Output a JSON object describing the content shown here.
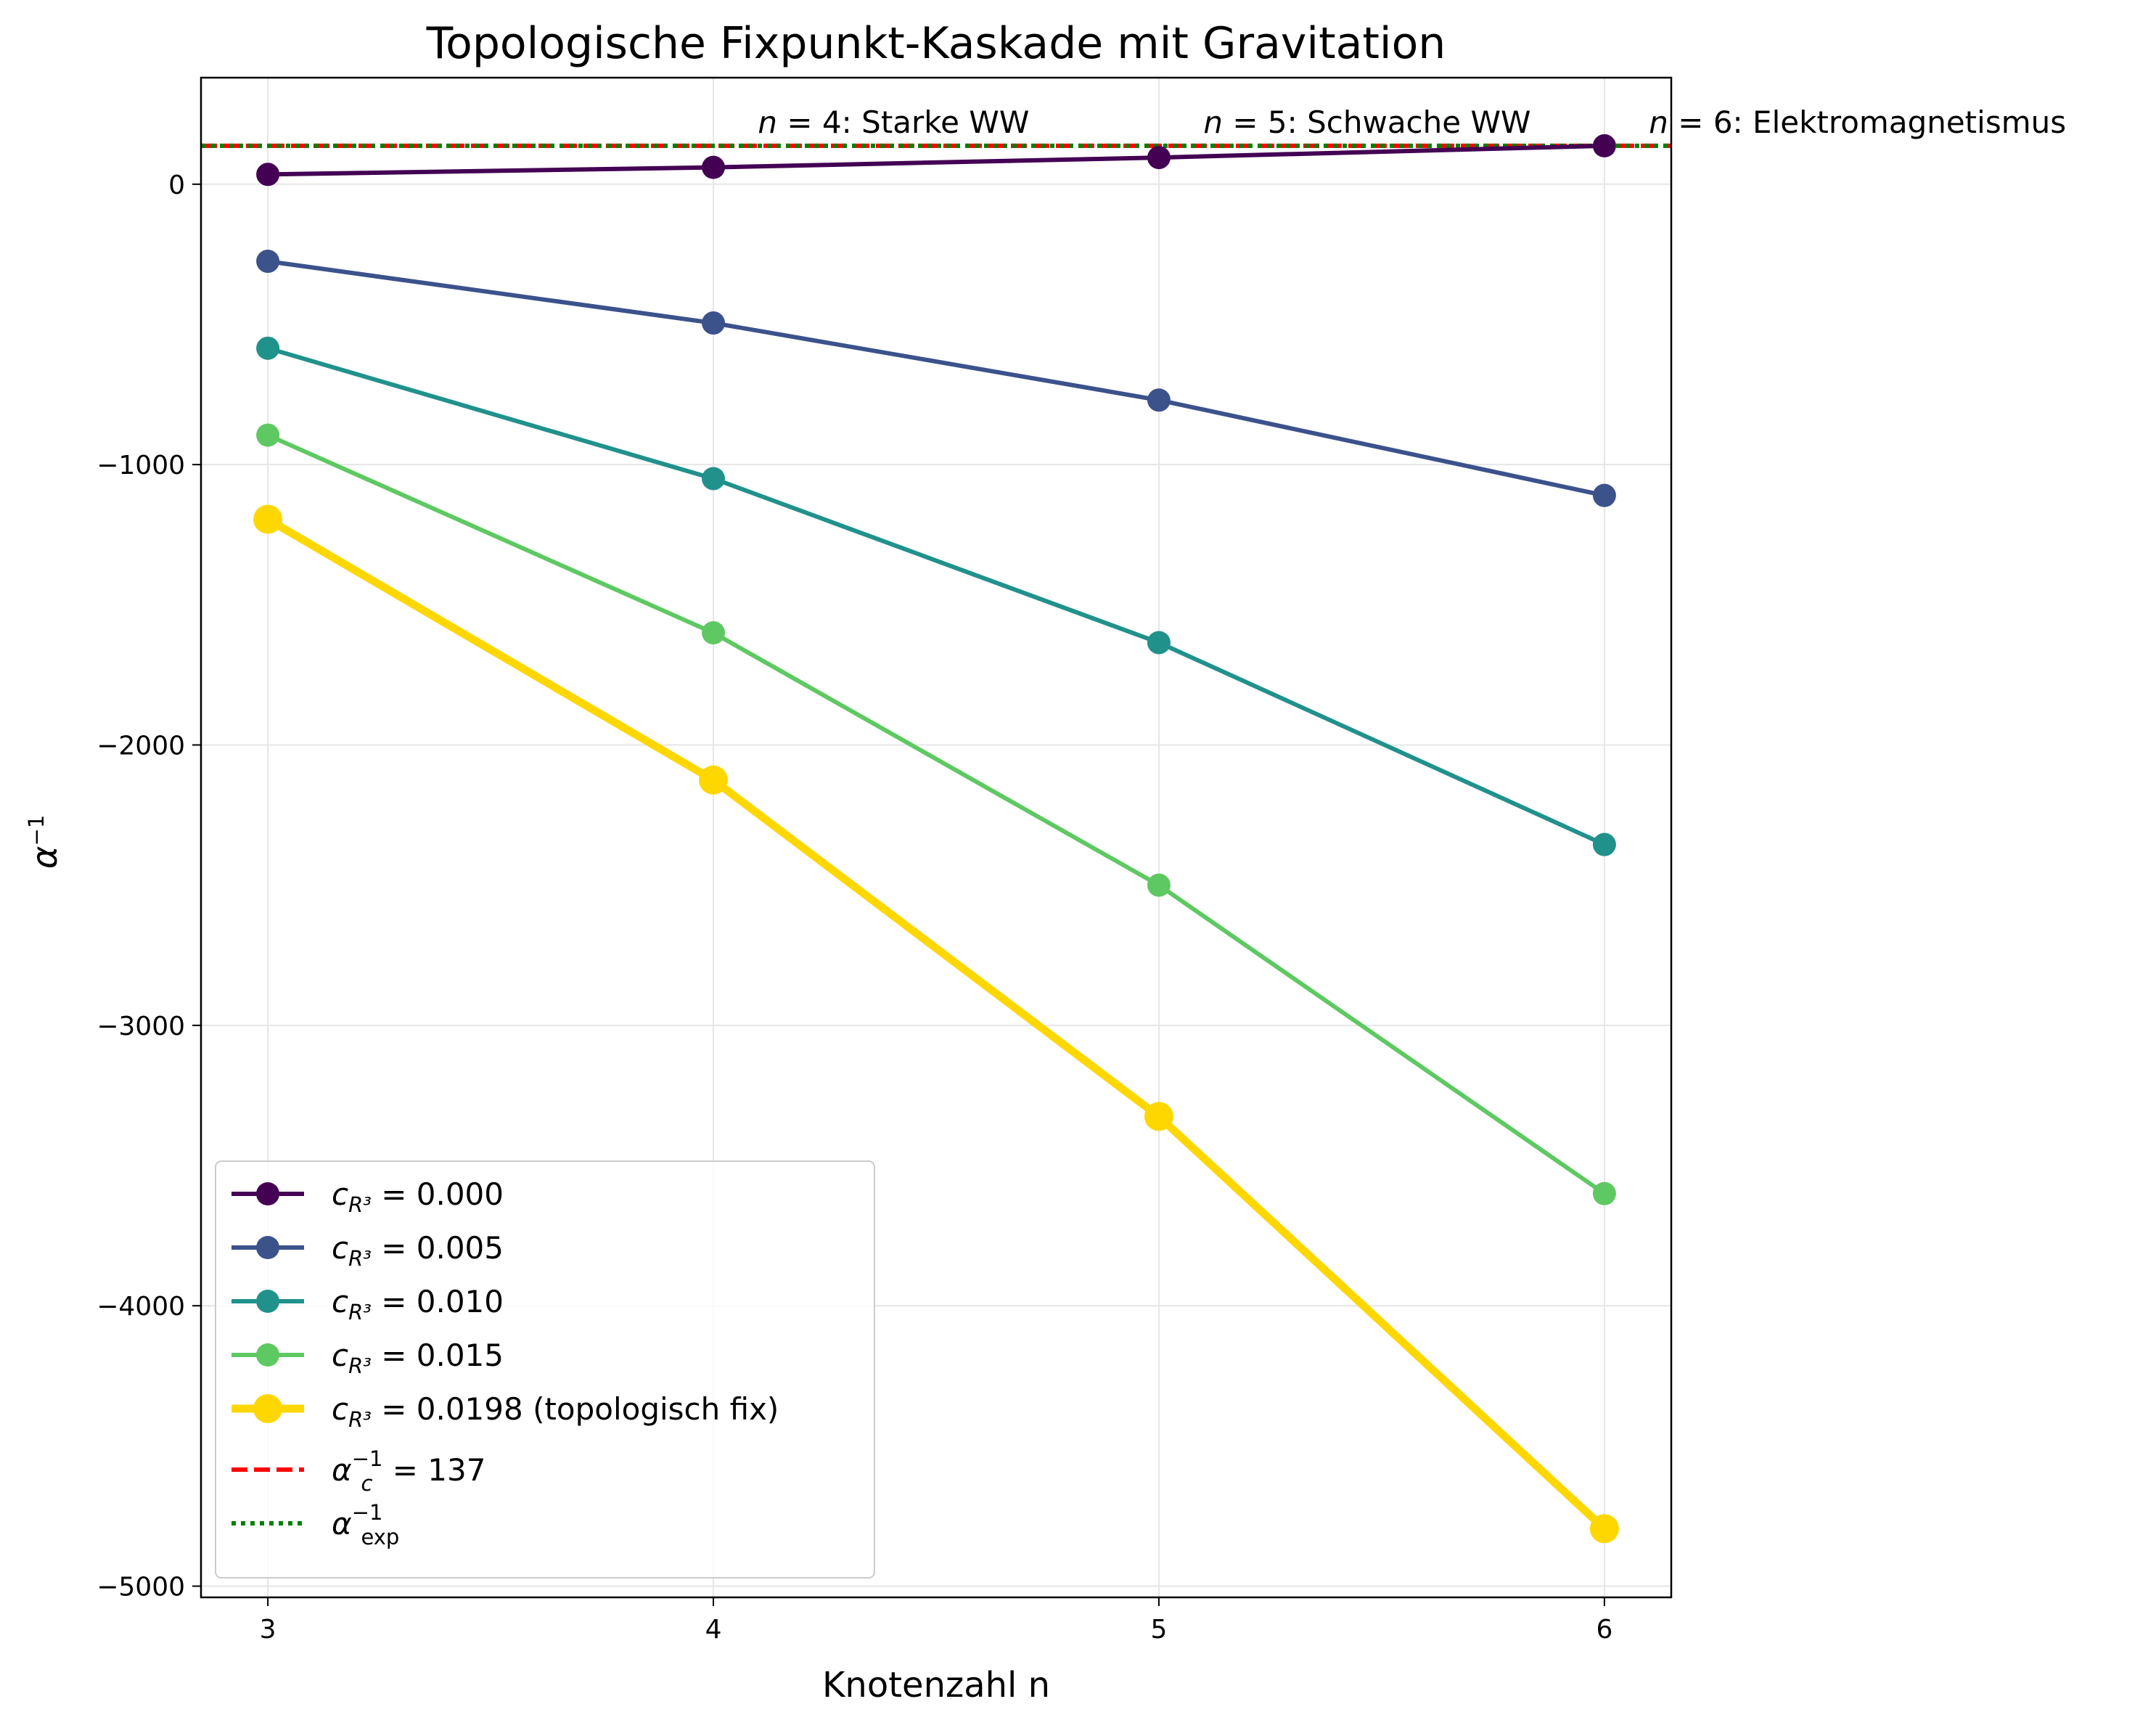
{
  "chart_data": {
    "type": "line",
    "title": "Topologische Fixpunkt-Kaskade mit Gravitation",
    "xlabel": "Knotenzahl n",
    "ylabel": "α⁻¹",
    "x": [
      3,
      4,
      5,
      6
    ],
    "xlim": [
      2.85,
      6.15
    ],
    "ylim": [
      -5040,
      380
    ],
    "xticks": [
      3,
      4,
      5,
      6
    ],
    "yticks": [
      0,
      -1000,
      -2000,
      -3000,
      -4000,
      -5000
    ],
    "ytick_labels": [
      "0",
      "−1000",
      "−2000",
      "−3000",
      "−4000",
      "−5000"
    ],
    "grid": true,
    "legend_position": "lower-left",
    "series": [
      {
        "name": "c_{R³} = 0.000",
        "legend_prefix": "c",
        "legend_sub": "R³",
        "legend_suffix": " = 0.000",
        "color": "#440154",
        "values": [
          35,
          60,
          95,
          137
        ]
      },
      {
        "name": "c_{R³} = 0.005",
        "legend_prefix": "c",
        "legend_sub": "R³",
        "legend_suffix": " = 0.005",
        "color": "#3b528b",
        "values": [
          -275,
          -495,
          -770,
          -1110
        ]
      },
      {
        "name": "c_{R³} = 0.010",
        "legend_prefix": "c",
        "legend_sub": "R³",
        "legend_suffix": " = 0.010",
        "color": "#21918c",
        "values": [
          -585,
          -1050,
          -1635,
          -2355
        ]
      },
      {
        "name": "c_{R³} = 0.015",
        "legend_prefix": "c",
        "legend_sub": "R³",
        "legend_suffix": " = 0.015",
        "color": "#5ec962",
        "values": [
          -895,
          -1600,
          -2500,
          -3600
        ]
      },
      {
        "name": "c_{R³} = 0.0198 (topologisch fix)",
        "legend_prefix": "c",
        "legend_sub": "R³",
        "legend_suffix": " = 0.0198 (topologisch fix)",
        "color": "#ffd700",
        "values": [
          -1195,
          -2125,
          -3325,
          -4795
        ],
        "highlight": true
      }
    ],
    "reference_lines": [
      {
        "name": "α_c⁻¹ = 137",
        "value": 137,
        "color": "#ff0000",
        "style": "dashed"
      },
      {
        "name": "α_exp⁻¹",
        "value": 137.036,
        "color": "#008000",
        "style": "dotted"
      }
    ],
    "reference_legend": [
      {
        "base": "α",
        "sub": "c",
        "sup": "−1",
        "suffix": " = 137"
      },
      {
        "base": "α",
        "sub": "exp",
        "sup": "−1",
        "suffix": ""
      }
    ],
    "annotations": [
      {
        "x": 4.1,
        "italic": "n",
        "text": " = 4: Starke WW"
      },
      {
        "x": 5.1,
        "italic": "n",
        "text": " = 5: Schwache WW"
      },
      {
        "x": 6.1,
        "italic": "n",
        "text": " = 6: Elektromagnetismus"
      }
    ]
  }
}
